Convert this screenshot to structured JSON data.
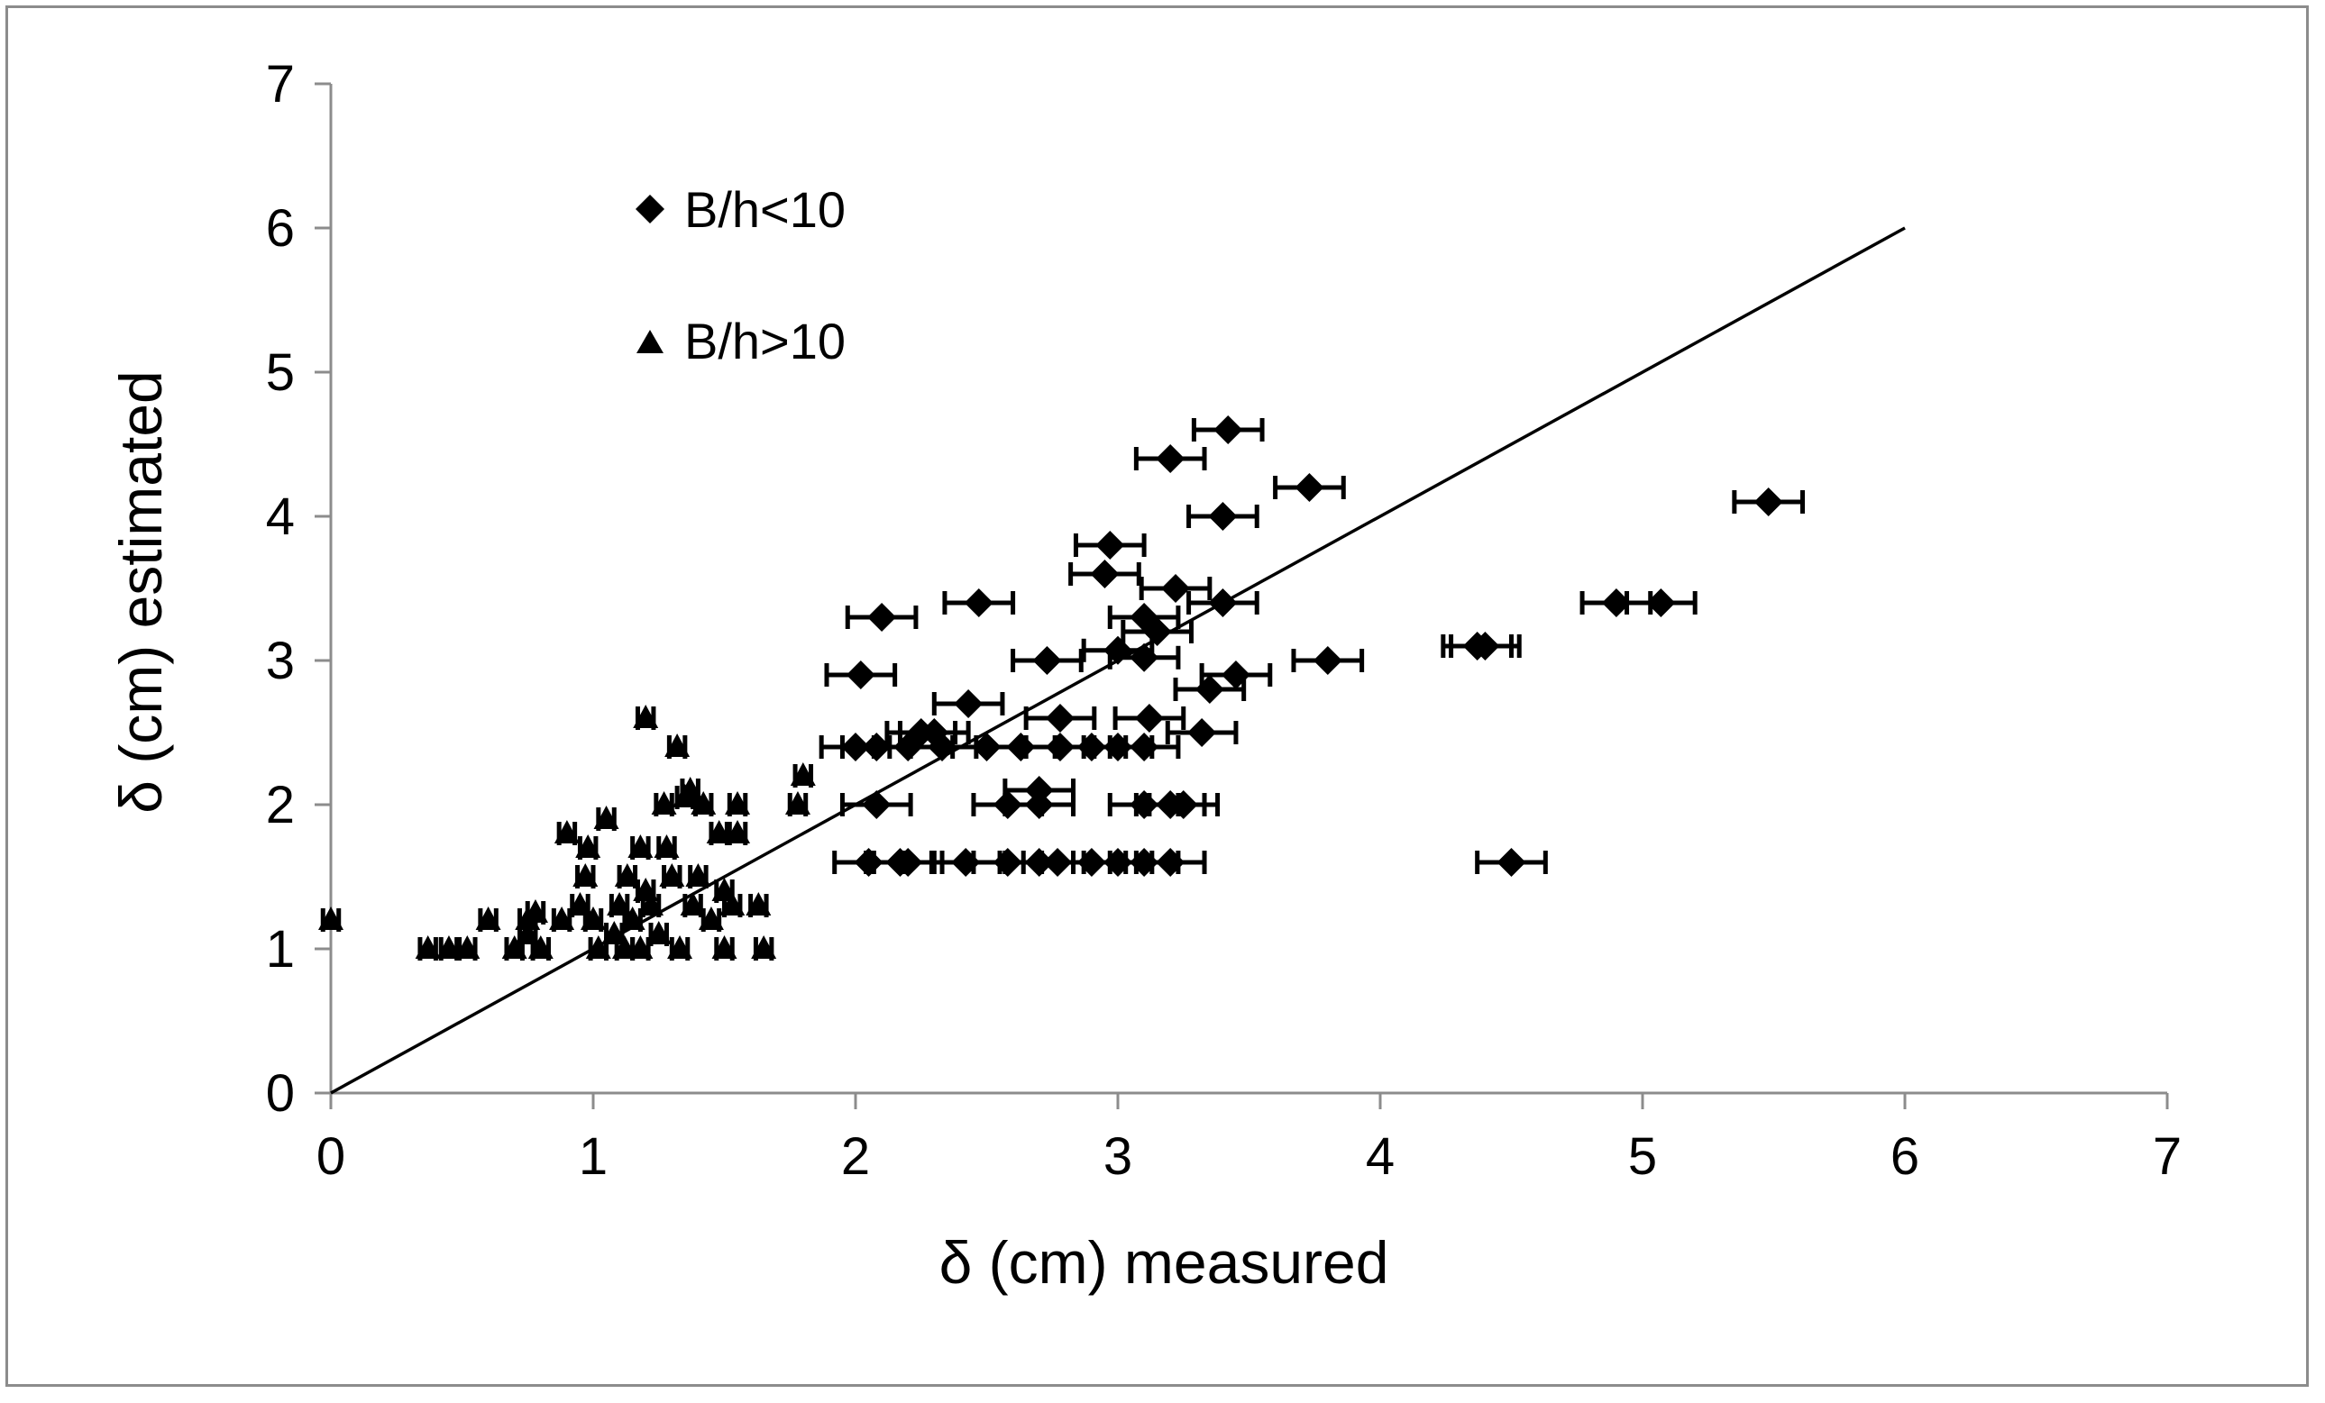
{
  "chart_data": {
    "type": "scatter",
    "xlabel": "δ (cm) measured",
    "ylabel": "δ (cm) estimated",
    "xlim": [
      0,
      7
    ],
    "ylim": [
      0,
      7
    ],
    "xticks": [
      "0",
      "1",
      "2",
      "3",
      "4",
      "5",
      "6",
      "7"
    ],
    "yticks": [
      "0",
      "1",
      "2",
      "3",
      "4",
      "5",
      "6",
      "7"
    ],
    "grid": false,
    "legend_position": "top-left",
    "reference_line": {
      "x": [
        0,
        6
      ],
      "y": [
        0,
        6
      ]
    },
    "series": [
      {
        "name": "B/h<10",
        "marker": "diamond",
        "x_error": 0.13,
        "points": [
          {
            "x": 3.42,
            "y": 4.6
          },
          {
            "x": 3.2,
            "y": 4.4
          },
          {
            "x": 3.73,
            "y": 4.2
          },
          {
            "x": 3.4,
            "y": 4.0
          },
          {
            "x": 5.48,
            "y": 4.1
          },
          {
            "x": 2.97,
            "y": 3.8
          },
          {
            "x": 2.95,
            "y": 3.6
          },
          {
            "x": 3.22,
            "y": 3.5
          },
          {
            "x": 3.4,
            "y": 3.4
          },
          {
            "x": 2.47,
            "y": 3.4
          },
          {
            "x": 4.9,
            "y": 3.4
          },
          {
            "x": 5.07,
            "y": 3.4
          },
          {
            "x": 2.1,
            "y": 3.3
          },
          {
            "x": 3.1,
            "y": 3.3
          },
          {
            "x": 3.15,
            "y": 3.2
          },
          {
            "x": 4.37,
            "y": 3.1
          },
          {
            "x": 4.4,
            "y": 3.1
          },
          {
            "x": 3.0,
            "y": 3.07
          },
          {
            "x": 3.1,
            "y": 3.02
          },
          {
            "x": 2.73,
            "y": 3.0
          },
          {
            "x": 3.8,
            "y": 3.0
          },
          {
            "x": 2.02,
            "y": 2.9
          },
          {
            "x": 3.45,
            "y": 2.9
          },
          {
            "x": 3.35,
            "y": 2.8
          },
          {
            "x": 2.43,
            "y": 2.7
          },
          {
            "x": 2.78,
            "y": 2.6
          },
          {
            "x": 3.12,
            "y": 2.6
          },
          {
            "x": 3.32,
            "y": 2.5
          },
          {
            "x": 2.25,
            "y": 2.5
          },
          {
            "x": 2.3,
            "y": 2.5
          },
          {
            "x": 2.0,
            "y": 2.4
          },
          {
            "x": 2.08,
            "y": 2.4
          },
          {
            "x": 2.2,
            "y": 2.4
          },
          {
            "x": 2.33,
            "y": 2.4
          },
          {
            "x": 2.5,
            "y": 2.4
          },
          {
            "x": 2.63,
            "y": 2.4
          },
          {
            "x": 2.78,
            "y": 2.4
          },
          {
            "x": 2.9,
            "y": 2.4
          },
          {
            "x": 3.0,
            "y": 2.4
          },
          {
            "x": 3.1,
            "y": 2.4
          },
          {
            "x": 2.7,
            "y": 2.1
          },
          {
            "x": 2.08,
            "y": 2.0
          },
          {
            "x": 2.58,
            "y": 2.0
          },
          {
            "x": 2.7,
            "y": 2.0
          },
          {
            "x": 3.1,
            "y": 2.0
          },
          {
            "x": 3.2,
            "y": 2.0
          },
          {
            "x": 3.25,
            "y": 2.0
          },
          {
            "x": 2.05,
            "y": 1.6
          },
          {
            "x": 2.17,
            "y": 1.6
          },
          {
            "x": 2.2,
            "y": 1.6
          },
          {
            "x": 2.42,
            "y": 1.6
          },
          {
            "x": 2.58,
            "y": 1.6
          },
          {
            "x": 2.7,
            "y": 1.6
          },
          {
            "x": 2.77,
            "y": 1.6
          },
          {
            "x": 2.9,
            "y": 1.6
          },
          {
            "x": 3.0,
            "y": 1.6
          },
          {
            "x": 3.1,
            "y": 1.6
          },
          {
            "x": 3.2,
            "y": 1.6
          },
          {
            "x": 4.5,
            "y": 1.6
          }
        ]
      },
      {
        "name": "B/h>10",
        "marker": "triangle",
        "x_error": 0.03,
        "points": [
          {
            "x": 0.0,
            "y": 1.2
          },
          {
            "x": 0.37,
            "y": 1.0
          },
          {
            "x": 0.45,
            "y": 1.0
          },
          {
            "x": 0.52,
            "y": 1.0
          },
          {
            "x": 0.6,
            "y": 1.2
          },
          {
            "x": 0.7,
            "y": 1.0
          },
          {
            "x": 0.75,
            "y": 1.1
          },
          {
            "x": 0.75,
            "y": 1.2
          },
          {
            "x": 0.78,
            "y": 1.25
          },
          {
            "x": 0.8,
            "y": 1.0
          },
          {
            "x": 0.88,
            "y": 1.2
          },
          {
            "x": 0.9,
            "y": 1.8
          },
          {
            "x": 0.95,
            "y": 1.3
          },
          {
            "x": 0.97,
            "y": 1.5
          },
          {
            "x": 0.98,
            "y": 1.7
          },
          {
            "x": 1.0,
            "y": 1.2
          },
          {
            "x": 1.02,
            "y": 1.0
          },
          {
            "x": 1.05,
            "y": 1.9
          },
          {
            "x": 1.08,
            "y": 1.1
          },
          {
            "x": 1.1,
            "y": 1.3
          },
          {
            "x": 1.12,
            "y": 1.0
          },
          {
            "x": 1.13,
            "y": 1.5
          },
          {
            "x": 1.15,
            "y": 1.2
          },
          {
            "x": 1.18,
            "y": 1.0
          },
          {
            "x": 1.18,
            "y": 1.7
          },
          {
            "x": 1.2,
            "y": 2.6
          },
          {
            "x": 1.2,
            "y": 1.4
          },
          {
            "x": 1.22,
            "y": 1.3
          },
          {
            "x": 1.25,
            "y": 1.1
          },
          {
            "x": 1.27,
            "y": 2.0
          },
          {
            "x": 1.28,
            "y": 1.7
          },
          {
            "x": 1.3,
            "y": 1.5
          },
          {
            "x": 1.32,
            "y": 2.4
          },
          {
            "x": 1.33,
            "y": 1.0
          },
          {
            "x": 1.35,
            "y": 2.05
          },
          {
            "x": 1.37,
            "y": 2.1
          },
          {
            "x": 1.38,
            "y": 1.3
          },
          {
            "x": 1.4,
            "y": 1.5
          },
          {
            "x": 1.42,
            "y": 2.0
          },
          {
            "x": 1.45,
            "y": 1.2
          },
          {
            "x": 1.48,
            "y": 1.8
          },
          {
            "x": 1.5,
            "y": 1.4
          },
          {
            "x": 1.5,
            "y": 1.0
          },
          {
            "x": 1.53,
            "y": 1.3
          },
          {
            "x": 1.55,
            "y": 1.8
          },
          {
            "x": 1.55,
            "y": 2.0
          },
          {
            "x": 1.63,
            "y": 1.3
          },
          {
            "x": 1.65,
            "y": 1.0
          },
          {
            "x": 1.78,
            "y": 2.0
          },
          {
            "x": 1.8,
            "y": 2.2
          }
        ]
      }
    ]
  }
}
